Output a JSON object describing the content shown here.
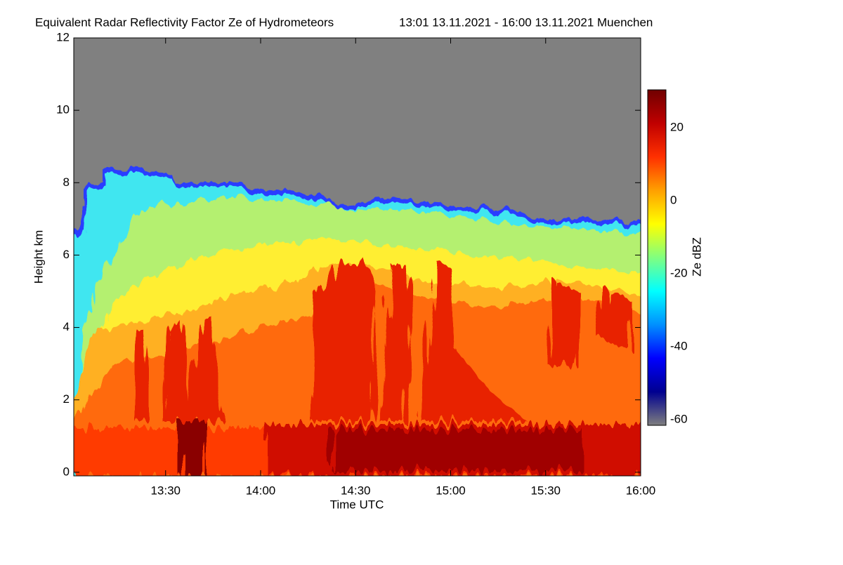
{
  "chart_data": {
    "type": "heatmap",
    "title": "Equivalent Radar Reflectivity Factor Ze of Hydrometeors",
    "subtitle": "13:01 13.11.2021 - 16:00 13.11.2021 Muenchen",
    "x_label": "Time UTC",
    "y_label": "Height km",
    "xlim": [
      "13:01",
      "16:00"
    ],
    "xticks": [
      "13:30",
      "14:00",
      "14:30",
      "15:00",
      "15:30",
      "16:00"
    ],
    "ylim": [
      -0.1,
      12
    ],
    "yticks": [
      0,
      2,
      4,
      6,
      8,
      10,
      12
    ],
    "colorbar_label": "Ze dBZ",
    "zlim": [
      -61.5,
      30.4
    ],
    "zticks": [
      -60,
      -40,
      -20,
      0,
      20
    ],
    "colormap": [
      "#7f7f7f",
      "#000090",
      "#0000ff",
      "#0090ff",
      "#00ffff",
      "#80ff80",
      "#ffff00",
      "#ffa000",
      "#ff3000",
      "#c00000",
      "#700000"
    ],
    "background": "#808080"
  }
}
